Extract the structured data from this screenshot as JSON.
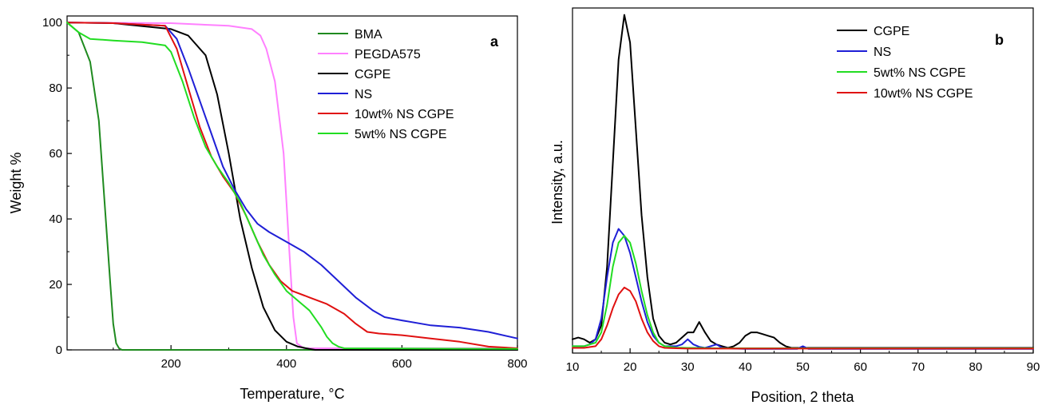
{
  "chart_data": [
    {
      "type": "line",
      "panel_letter": "a",
      "xlabel": "Temperature, °C",
      "ylabel": "Weight %",
      "xlim": [
        20,
        800
      ],
      "ylim": [
        0,
        102
      ],
      "xticks": [
        200,
        400,
        600,
        800
      ],
      "yticks": [
        0,
        20,
        40,
        60,
        80,
        100
      ],
      "legend_position": "top-right",
      "series": [
        {
          "name": "BMA",
          "color": "#1f8a1f",
          "x": [
            20,
            40,
            60,
            75,
            85,
            95,
            100,
            105,
            110,
            115,
            800
          ],
          "y": [
            100,
            97,
            88,
            70,
            45,
            20,
            8,
            2,
            0.5,
            0,
            0
          ]
        },
        {
          "name": "PEGDA575",
          "color": "#ff80ff",
          "x": [
            20,
            200,
            300,
            340,
            355,
            365,
            380,
            395,
            405,
            412,
            418,
            430,
            800
          ],
          "y": [
            100,
            99.8,
            99,
            98,
            96,
            92,
            82,
            60,
            30,
            10,
            2,
            0.5,
            0.5
          ]
        },
        {
          "name": "CGPE",
          "color": "#000000",
          "x": [
            20,
            100,
            200,
            230,
            260,
            280,
            300,
            320,
            340,
            360,
            380,
            400,
            420,
            440,
            450,
            800
          ],
          "y": [
            100,
            99.8,
            98,
            96,
            90,
            78,
            60,
            40,
            25,
            13,
            6,
            2.5,
            1,
            0.3,
            0,
            0
          ]
        },
        {
          "name": "NS",
          "color": "#1f1fd6",
          "x": [
            20,
            100,
            190,
            210,
            230,
            250,
            270,
            290,
            310,
            330,
            350,
            370,
            400,
            430,
            460,
            490,
            520,
            550,
            570,
            600,
            650,
            700,
            750,
            800
          ],
          "y": [
            100,
            99.8,
            99,
            95,
            86,
            76,
            66,
            56,
            49,
            43,
            38.5,
            36,
            33,
            30,
            26,
            21,
            16,
            12,
            10,
            9,
            7.5,
            6.8,
            5.5,
            3.5
          ]
        },
        {
          "name": "10wt% NS CGPE",
          "color": "#e01010",
          "x": [
            20,
            100,
            190,
            210,
            230,
            250,
            270,
            290,
            310,
            330,
            350,
            370,
            390,
            410,
            440,
            470,
            500,
            520,
            540,
            560,
            600,
            650,
            700,
            750,
            800
          ],
          "y": [
            100,
            99.8,
            99,
            92,
            80,
            68,
            59,
            53,
            48,
            41,
            33,
            26,
            21,
            18,
            16,
            14,
            11,
            8,
            5.5,
            5,
            4.5,
            3.5,
            2.5,
            1,
            0.5
          ]
        },
        {
          "name": "5wt% NS CGPE",
          "color": "#22dd22",
          "x": [
            20,
            40,
            60,
            100,
            150,
            190,
            200,
            220,
            240,
            260,
            280,
            300,
            320,
            340,
            360,
            380,
            400,
            420,
            440,
            460,
            470,
            480,
            490,
            500,
            800
          ],
          "y": [
            100,
            97,
            95,
            94.5,
            94,
            93,
            91,
            82,
            71,
            62,
            56,
            51,
            45,
            37,
            29,
            23,
            18,
            15,
            12,
            7,
            4,
            2,
            1,
            0.5,
            0.3
          ]
        }
      ]
    },
    {
      "type": "line",
      "panel_letter": "b",
      "xlabel": "Position, 2 theta",
      "ylabel": "Intensity, a.u.",
      "xlim": [
        10,
        90
      ],
      "ylim": [
        0,
        100
      ],
      "xticks": [
        10,
        20,
        30,
        40,
        50,
        60,
        70,
        80,
        90
      ],
      "legend_position": "top-right",
      "series": [
        {
          "name": "CGPE",
          "color": "#000000",
          "x": [
            10,
            11,
            12,
            13,
            14,
            15,
            16,
            17,
            18,
            19,
            20,
            21,
            22,
            23,
            24,
            25,
            26,
            27,
            28,
            29,
            30,
            31,
            32,
            33,
            34,
            35,
            36,
            37,
            38,
            39,
            40,
            41,
            42,
            43,
            44,
            45,
            46,
            47,
            48,
            50,
            55,
            60,
            65,
            70,
            75,
            80,
            85,
            90
          ],
          "y": [
            4,
            4.5,
            4,
            3,
            4,
            8,
            25,
            55,
            85,
            98,
            90,
            65,
            40,
            22,
            10,
            5,
            3,
            2.5,
            3,
            4.5,
            6,
            6,
            9,
            6,
            3.5,
            2.5,
            2,
            1.5,
            2,
            3,
            5,
            6,
            6,
            5.5,
            5,
            4.5,
            3,
            2,
            1.5,
            1.5,
            1.5,
            1.5,
            1.5,
            1.5,
            1.5,
            1.5,
            1.5,
            1.5
          ]
        },
        {
          "name": "NS",
          "color": "#1f1fd6",
          "x": [
            10,
            12,
            13,
            14,
            15,
            16,
            17,
            18,
            19,
            20,
            21,
            22,
            23,
            24,
            25,
            26,
            28,
            29,
            30,
            31,
            32,
            33,
            35,
            36,
            38,
            40,
            45,
            49,
            50,
            51,
            55,
            60,
            70,
            80,
            90
          ],
          "y": [
            2,
            2,
            2.5,
            4,
            10,
            22,
            32,
            36,
            34,
            29,
            22,
            15,
            9,
            5,
            3,
            2,
            2,
            2.5,
            4,
            2.5,
            1.8,
            1.5,
            2.5,
            1.5,
            1.3,
            1.2,
            1.2,
            1.2,
            2,
            1.2,
            1.2,
            1.2,
            1.2,
            1.2,
            1.2
          ]
        },
        {
          "name": "5wt% NS CGPE",
          "color": "#22dd22",
          "x": [
            10,
            12,
            14,
            15,
            16,
            17,
            18,
            19,
            20,
            21,
            22,
            23,
            24,
            25,
            26,
            28,
            30,
            32,
            35,
            40,
            45,
            50,
            60,
            70,
            80,
            90
          ],
          "y": [
            2,
            2,
            3,
            6,
            14,
            25,
            32,
            34,
            32,
            26,
            18,
            11,
            6,
            3,
            2,
            1.6,
            1.5,
            1.5,
            1.4,
            1.4,
            1.4,
            1.4,
            1.4,
            1.4,
            1.4,
            1.4
          ]
        },
        {
          "name": "10wt% NS CGPE",
          "color": "#e01010",
          "x": [
            10,
            12,
            14,
            15,
            16,
            17,
            18,
            19,
            20,
            21,
            22,
            23,
            24,
            25,
            26,
            28,
            30,
            32,
            35,
            40,
            45,
            50,
            60,
            70,
            80,
            90
          ],
          "y": [
            1.5,
            1.5,
            2,
            4,
            8,
            13,
            17,
            19,
            18,
            15,
            10,
            6,
            3.5,
            2,
            1.5,
            1.4,
            1.3,
            1.3,
            1.3,
            1.3,
            1.3,
            1.3,
            1.3,
            1.3,
            1.3,
            1.3
          ]
        }
      ]
    }
  ]
}
